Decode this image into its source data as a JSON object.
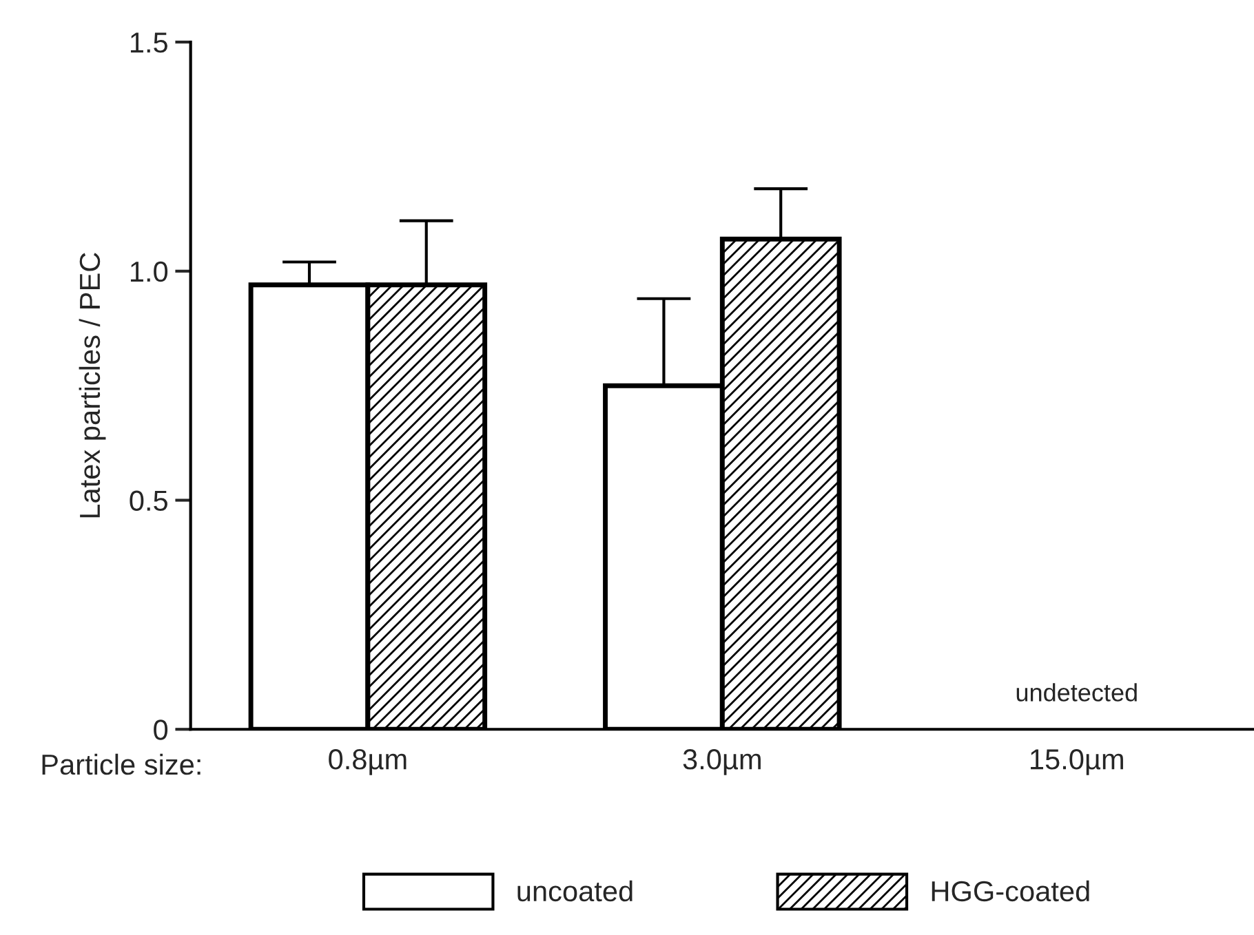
{
  "chart_data": {
    "type": "bar",
    "ylabel": "Latex particles / PEC",
    "xlabel": "Particle size:",
    "categories": [
      "0.8µm",
      "3.0µm",
      "15.0µm"
    ],
    "series": [
      {
        "name": "uncoated",
        "color": "#ffffff",
        "values": [
          0.97,
          0.75,
          null
        ],
        "errors": [
          [
            0.97,
            1.02
          ],
          [
            0.75,
            0.94
          ],
          null
        ]
      },
      {
        "name": "HGG-coated",
        "color": "#000000",
        "values": [
          0.97,
          1.07,
          null
        ],
        "errors": [
          [
            0.97,
            1.11
          ],
          [
            1.07,
            1.18
          ],
          null
        ]
      }
    ],
    "annotations": [
      "undetected"
    ],
    "ylim": [
      0,
      1.5
    ],
    "yticks": [
      {
        "value": 0,
        "label": "0"
      },
      0.5,
      {
        "value": 1.0,
        "label": "1.0"
      },
      1.5
    ],
    "grid": false,
    "legend": "bottom"
  }
}
